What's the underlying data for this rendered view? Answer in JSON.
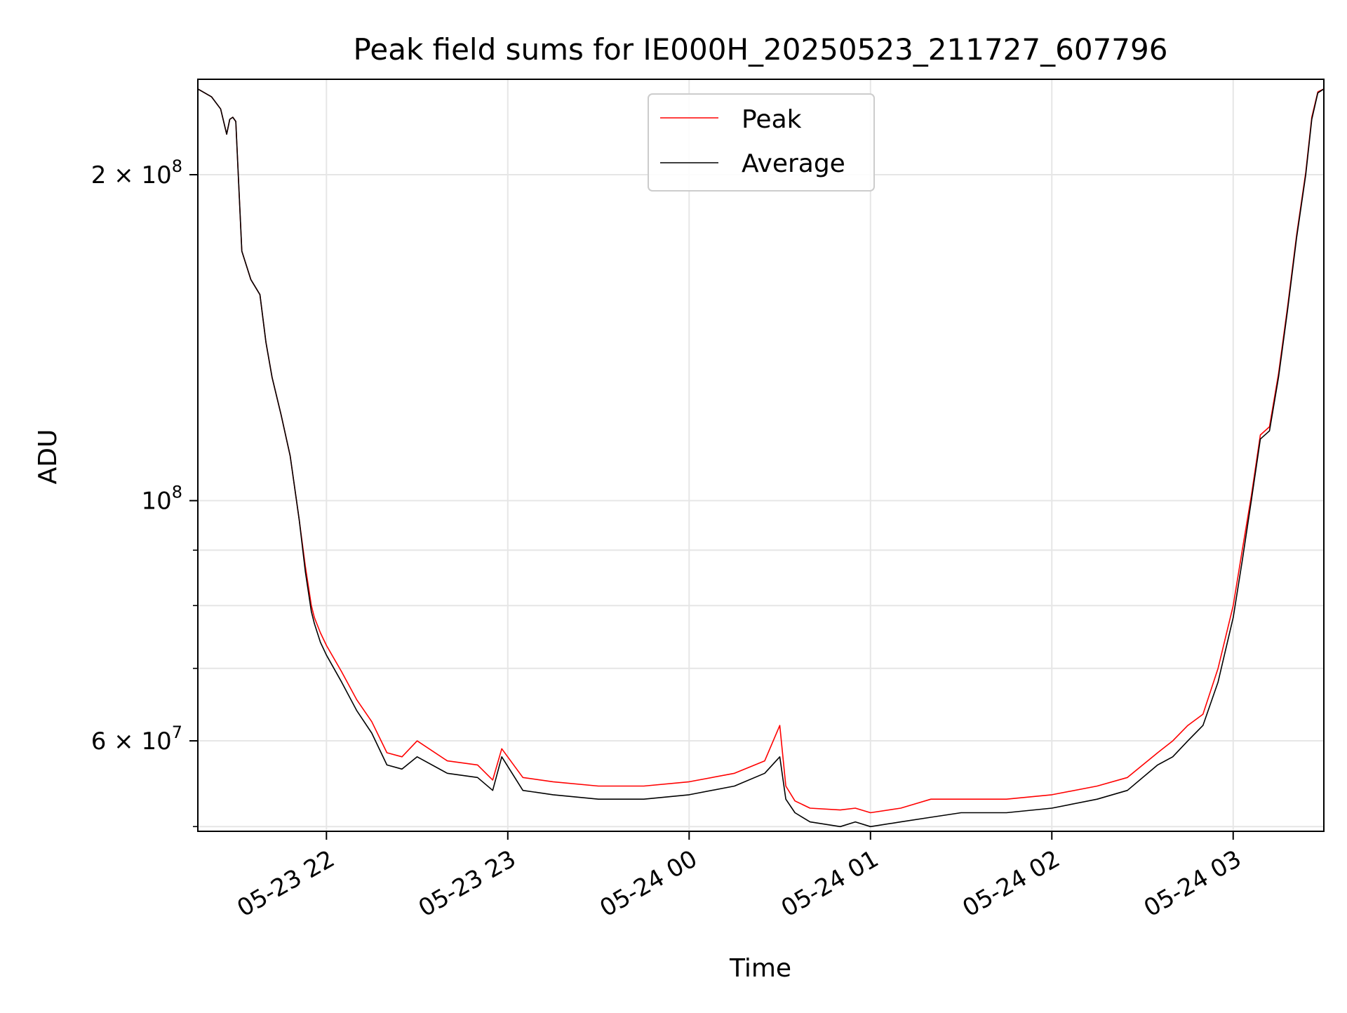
{
  "chart_data": {
    "type": "line",
    "title": "Peak field sums for IE000H_20250523_211727_607796",
    "xlabel": "Time",
    "ylabel": "ADU",
    "y_scale": "log",
    "xlim": [
      "2025-05-23 21:17:27",
      "2025-05-24 03:30:00"
    ],
    "ylim": [
      49500000,
      245000000
    ],
    "grid": true,
    "legend": {
      "placement": "upper-center",
      "entries": [
        "Peak",
        "Average"
      ]
    },
    "x_ticks": [
      {
        "value": "2025-05-23 22:00",
        "label": "05-23 22"
      },
      {
        "value": "2025-05-23 23:00",
        "label": "05-23 23"
      },
      {
        "value": "2025-05-24 00:00",
        "label": "05-24 00"
      },
      {
        "value": "2025-05-24 01:00",
        "label": "05-24 01"
      },
      {
        "value": "2025-05-24 02:00",
        "label": "05-24 02"
      },
      {
        "value": "2025-05-24 03:00",
        "label": "05-24 03"
      }
    ],
    "y_major_ticks": [
      {
        "value": 60000000,
        "mantissa": "6",
        "exponent": "7"
      },
      {
        "value": 100000000,
        "mantissa": "",
        "exponent": "8"
      },
      {
        "value": 200000000,
        "mantissa": "2",
        "exponent": "8"
      }
    ],
    "y_minor_ticks": [
      50000000,
      70000000,
      80000000,
      90000000
    ],
    "series": [
      {
        "name": "Average",
        "color": "#000000",
        "x": [
          "2025-05-23 21:17:27",
          "2025-05-23 21:22",
          "2025-05-23 21:25",
          "2025-05-23 21:27",
          "2025-05-23 21:28",
          "2025-05-23 21:29",
          "2025-05-23 21:30",
          "2025-05-23 21:32",
          "2025-05-23 21:35",
          "2025-05-23 21:38",
          "2025-05-23 21:40",
          "2025-05-23 21:42",
          "2025-05-23 21:45",
          "2025-05-23 21:48",
          "2025-05-23 21:51",
          "2025-05-23 21:53",
          "2025-05-23 21:55",
          "2025-05-23 21:56",
          "2025-05-23 21:58",
          "2025-05-23 22:00",
          "2025-05-23 22:05",
          "2025-05-23 22:10",
          "2025-05-23 22:15",
          "2025-05-23 22:20",
          "2025-05-23 22:25",
          "2025-05-23 22:30",
          "2025-05-23 22:40",
          "2025-05-23 22:50",
          "2025-05-23 22:55",
          "2025-05-23 22:58",
          "2025-05-23 23:05",
          "2025-05-23 23:15",
          "2025-05-23 23:30",
          "2025-05-23 23:45",
          "2025-05-24 00:00",
          "2025-05-24 00:15",
          "2025-05-24 00:25",
          "2025-05-24 00:30",
          "2025-05-24 00:32",
          "2025-05-24 00:35",
          "2025-05-24 00:40",
          "2025-05-24 00:50",
          "2025-05-24 00:55",
          "2025-05-24 01:00",
          "2025-05-24 01:10",
          "2025-05-24 01:20",
          "2025-05-24 01:30",
          "2025-05-24 01:45",
          "2025-05-24 02:00",
          "2025-05-24 02:15",
          "2025-05-24 02:25",
          "2025-05-24 02:35",
          "2025-05-24 02:40",
          "2025-05-24 02:45",
          "2025-05-24 02:50",
          "2025-05-24 02:55",
          "2025-05-24 03:00",
          "2025-05-24 03:03",
          "2025-05-24 03:06",
          "2025-05-24 03:09",
          "2025-05-24 03:12",
          "2025-05-24 03:15",
          "2025-05-24 03:18",
          "2025-05-24 03:21",
          "2025-05-24 03:24",
          "2025-05-24 03:26",
          "2025-05-24 03:28",
          "2025-05-24 03:30"
        ],
        "values": [
          240000000,
          236000000,
          230000000,
          218000000,
          225000000,
          226000000,
          224000000,
          170000000,
          160000000,
          155000000,
          140000000,
          130000000,
          120000000,
          110000000,
          96000000,
          86000000,
          79000000,
          77000000,
          74000000,
          72000000,
          68000000,
          64000000,
          61000000,
          57000000,
          56500000,
          58000000,
          56000000,
          55500000,
          54000000,
          58000000,
          54000000,
          53500000,
          53000000,
          53000000,
          53500000,
          54500000,
          56000000,
          58000000,
          53000000,
          51500000,
          50500000,
          50000000,
          50500000,
          50000000,
          50500000,
          51000000,
          51500000,
          51500000,
          52000000,
          53000000,
          54000000,
          57000000,
          58000000,
          60000000,
          62000000,
          68000000,
          78000000,
          88000000,
          100000000,
          114000000,
          116000000,
          130000000,
          150000000,
          175000000,
          200000000,
          225000000,
          238000000,
          240000000
        ]
      },
      {
        "name": "Peak",
        "color": "#ff0000",
        "x": [
          "2025-05-23 21:17:27",
          "2025-05-23 21:22",
          "2025-05-23 21:25",
          "2025-05-23 21:27",
          "2025-05-23 21:28",
          "2025-05-23 21:29",
          "2025-05-23 21:30",
          "2025-05-23 21:32",
          "2025-05-23 21:35",
          "2025-05-23 21:38",
          "2025-05-23 21:40",
          "2025-05-23 21:42",
          "2025-05-23 21:45",
          "2025-05-23 21:48",
          "2025-05-23 21:51",
          "2025-05-23 21:53",
          "2025-05-23 21:55",
          "2025-05-23 21:56",
          "2025-05-23 21:58",
          "2025-05-23 22:00",
          "2025-05-23 22:05",
          "2025-05-23 22:10",
          "2025-05-23 22:15",
          "2025-05-23 22:20",
          "2025-05-23 22:25",
          "2025-05-23 22:30",
          "2025-05-23 22:40",
          "2025-05-23 22:50",
          "2025-05-23 22:55",
          "2025-05-23 22:58",
          "2025-05-23 23:05",
          "2025-05-23 23:15",
          "2025-05-23 23:30",
          "2025-05-23 23:45",
          "2025-05-24 00:00",
          "2025-05-24 00:15",
          "2025-05-24 00:25",
          "2025-05-24 00:30",
          "2025-05-24 00:32",
          "2025-05-24 00:35",
          "2025-05-24 00:40",
          "2025-05-24 00:50",
          "2025-05-24 00:55",
          "2025-05-24 01:00",
          "2025-05-24 01:10",
          "2025-05-24 01:20",
          "2025-05-24 01:30",
          "2025-05-24 01:45",
          "2025-05-24 02:00",
          "2025-05-24 02:15",
          "2025-05-24 02:25",
          "2025-05-24 02:35",
          "2025-05-24 02:40",
          "2025-05-24 02:45",
          "2025-05-24 02:50",
          "2025-05-24 02:55",
          "2025-05-24 03:00",
          "2025-05-24 03:03",
          "2025-05-24 03:06",
          "2025-05-24 03:09",
          "2025-05-24 03:12",
          "2025-05-24 03:15",
          "2025-05-24 03:18",
          "2025-05-24 03:21",
          "2025-05-24 03:24",
          "2025-05-24 03:26",
          "2025-05-24 03:28",
          "2025-05-24 03:30"
        ],
        "values": [
          240000000,
          236000000,
          230000000,
          218000000,
          225000000,
          226000000,
          224000000,
          170000000,
          160000000,
          155000000,
          140000000,
          130000000,
          120000000,
          110000000,
          96000000,
          87000000,
          80000000,
          78000000,
          75500000,
          73500000,
          69500000,
          65500000,
          62500000,
          58500000,
          58000000,
          60000000,
          57500000,
          57000000,
          55200000,
          59000000,
          55500000,
          55000000,
          54500000,
          54500000,
          55000000,
          56000000,
          57500000,
          62000000,
          54500000,
          52800000,
          52000000,
          51800000,
          52000000,
          51500000,
          52000000,
          53000000,
          53000000,
          53000000,
          53500000,
          54500000,
          55500000,
          58500000,
          60000000,
          62000000,
          63500000,
          70000000,
          80000000,
          90000000,
          101000000,
          115000000,
          117000000,
          131000000,
          151000000,
          176000000,
          201000000,
          226000000,
          238500000,
          240000000
        ]
      }
    ]
  }
}
